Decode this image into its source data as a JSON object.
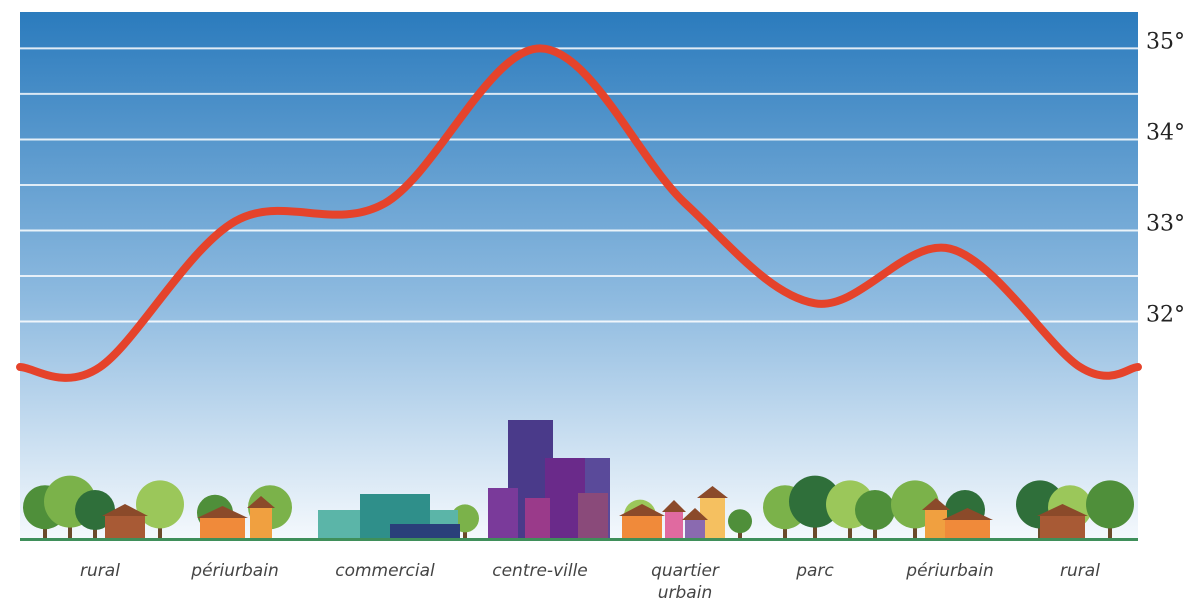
{
  "chart_data": {
    "type": "line",
    "categories": [
      "rural",
      "périurbain",
      "commercial",
      "centre-ville",
      "quartier urbain",
      "parc",
      "périurbain",
      "rural"
    ],
    "values": [
      31.5,
      33.1,
      33.3,
      35.0,
      33.3,
      32.2,
      32.8,
      31.5
    ],
    "color": "#e5432b",
    "ylim": [
      29.6,
      35.4
    ],
    "yticks": [
      {
        "value": 32,
        "label": "32°"
      },
      {
        "value": 33,
        "label": "33°"
      },
      {
        "value": 34,
        "label": "34°"
      },
      {
        "value": 35,
        "label": "35°"
      }
    ],
    "grid": true
  }
}
